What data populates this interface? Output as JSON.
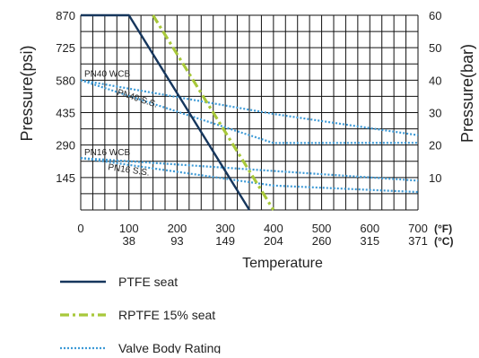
{
  "chart_data": {
    "type": "line",
    "title": "",
    "xlabel": "Temperature",
    "ylabel_left": "Pressure(psi)",
    "ylabel_right": "Pressure(bar)",
    "x_unit_f": "(°F)",
    "x_unit_c": "(°C)",
    "x_ticks_f": [
      "0",
      "100",
      "200",
      "300",
      "400",
      "500",
      "600",
      "700"
    ],
    "x_ticks_c": [
      "38",
      "93",
      "149",
      "204",
      "260",
      "315",
      "371"
    ],
    "xlim": [
      0,
      700
    ],
    "y_ticks_psi": [
      "870",
      "725",
      "580",
      "435",
      "290",
      "145"
    ],
    "ylim_psi": [
      0,
      870
    ],
    "y_ticks_bar": [
      "60",
      "50",
      "40",
      "30",
      "20",
      "10"
    ],
    "ylim_bar": [
      0,
      60
    ],
    "grid": true,
    "legend_position": "bottom",
    "series": [
      {
        "name": "PTFE seat",
        "color": "#16365c",
        "style": "solid",
        "x": [
          0,
          100,
          350
        ],
        "y": [
          870,
          870,
          0
        ]
      },
      {
        "name": "RPTFE 15% seat",
        "color": "#a8c83a",
        "style": "dashdot",
        "x": [
          150,
          400
        ],
        "y": [
          870,
          0
        ]
      },
      {
        "name": "Valve Body Rating",
        "color": "#3d9ad6",
        "style": "dotted",
        "lines": [
          {
            "label": "PN40 WCB",
            "x": [
              0,
              400,
              700
            ],
            "y": [
              580,
              429,
              334
            ]
          },
          {
            "label": "PN40 S.S.",
            "x": [
              0,
              400,
              700
            ],
            "y": [
              580,
              299,
              300
            ]
          },
          {
            "label": "PN16 WCB",
            "x": [
              0,
              700
            ],
            "y": [
              232,
              131
            ]
          },
          {
            "label": "PN16 S.S.",
            "x": [
              0,
              400,
              700
            ],
            "y": [
              232,
              109,
              80
            ]
          }
        ]
      }
    ]
  }
}
